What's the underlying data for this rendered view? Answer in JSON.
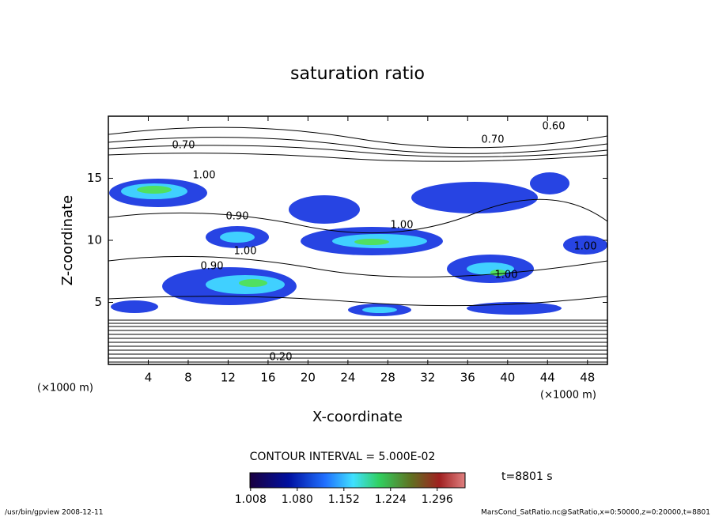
{
  "chart_data": {
    "type": "contour",
    "title": "saturation ratio",
    "xlabel": "X-coordinate",
    "ylabel": "Z-coordinate",
    "x_unit": "(×1000 m)",
    "y_unit": "(×1000 m)",
    "xlim": [
      0,
      50
    ],
    "xticks": [
      4,
      8,
      12,
      16,
      20,
      24,
      28,
      32,
      36,
      40,
      44,
      48
    ],
    "ylim": [
      0,
      20
    ],
    "yticks": [
      5,
      10,
      15
    ],
    "grid": false,
    "contour_labels": [
      "0.70",
      "0.60",
      "0.70",
      "1.00",
      "0.90",
      "1.00",
      "0.90",
      "1.00",
      "1.00",
      "1.00",
      "0.20"
    ],
    "contour_interval": "CONTOUR INTERVAL = 5.000E-02",
    "time_label": "t=8801 s",
    "colorbar_lim": [
      1.007,
      1.339
    ],
    "colorbar_ticks": [
      {
        "value": 1.008,
        "label": "1.008"
      },
      {
        "value": 1.08,
        "label": "1.080"
      },
      {
        "value": 1.152,
        "label": "1.152"
      },
      {
        "value": 1.224,
        "label": "1.224"
      },
      {
        "value": 1.296,
        "label": "1.296"
      }
    ],
    "footer_left": "/usr/bin/gpview  2008-12-11",
    "footer_right": "MarsCond_SatRatio.nc@SatRatio,x=0:50000,z=0:20000,t=8801"
  }
}
